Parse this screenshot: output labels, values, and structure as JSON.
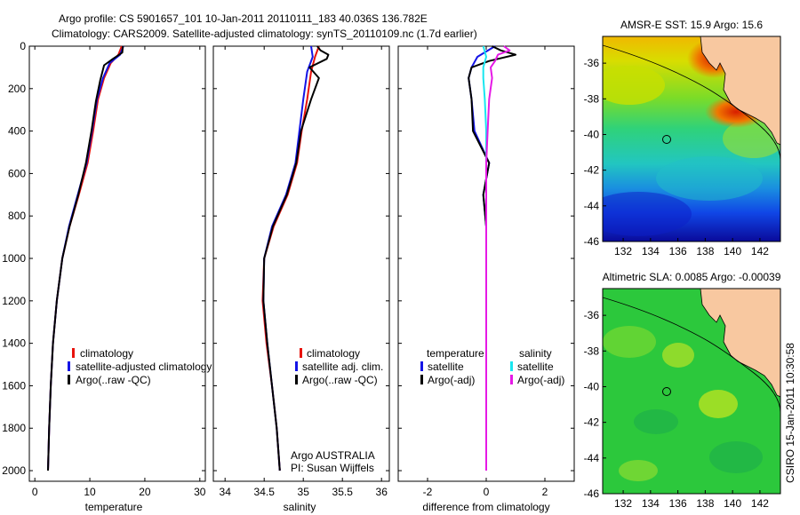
{
  "title": {
    "line1": "Argo profile: CS 5901657_101 10-Jan-2011 20110111_183 40.036S 136.782E",
    "line2": "Climatology: CARS2009. Satellite-adjusted climatology: synTS_20110109.nc (1.7d earlier)"
  },
  "side_label": "CSIRO 15-Jan-2011 10:30:58",
  "colors": {
    "red": "#e8120c",
    "blue": "#1414e6",
    "black": "#000000",
    "cyan": "#19e6f0",
    "magenta": "#e619e6"
  },
  "chart_data": [
    {
      "type": "line",
      "name": "temperature-profile",
      "xlabel": "temperature",
      "xlim": [
        -1,
        31
      ],
      "ylim": [
        2050,
        0
      ],
      "xticks": [
        0,
        10,
        20,
        30
      ],
      "yticks": [
        0,
        200,
        400,
        600,
        800,
        1000,
        1200,
        1400,
        1600,
        1800,
        2000
      ],
      "legend": [
        "climatology",
        "satellite-adjusted climatology",
        "Argo(..raw -QC)"
      ],
      "series": [
        {
          "name": "climatology",
          "color": "red",
          "points": [
            [
              15.8,
              0
            ],
            [
              15.2,
              40
            ],
            [
              13.8,
              80
            ],
            [
              12.6,
              150
            ],
            [
              11.5,
              250
            ],
            [
              10.6,
              400
            ],
            [
              9.6,
              550
            ],
            [
              8.0,
              700
            ],
            [
              6.3,
              850
            ],
            [
              5.0,
              1000
            ],
            [
              4.0,
              1200
            ],
            [
              3.3,
              1400
            ],
            [
              2.9,
              1600
            ],
            [
              2.6,
              1800
            ],
            [
              2.4,
              2000
            ]
          ]
        },
        {
          "name": "satellite-adjusted climatology",
          "color": "blue",
          "points": [
            [
              16.1,
              0
            ],
            [
              15.5,
              40
            ],
            [
              13.6,
              80
            ],
            [
              12.4,
              150
            ],
            [
              11.3,
              250
            ],
            [
              10.4,
              400
            ],
            [
              9.4,
              550
            ],
            [
              7.8,
              700
            ],
            [
              6.2,
              850
            ],
            [
              5.0,
              1000
            ],
            [
              4.0,
              1200
            ],
            [
              3.3,
              1400
            ],
            [
              2.9,
              1600
            ],
            [
              2.6,
              1800
            ],
            [
              2.4,
              2000
            ]
          ]
        },
        {
          "name": "Argo(..raw -QC)",
          "color": "black",
          "points": [
            [
              16.0,
              0
            ],
            [
              15.9,
              30
            ],
            [
              14.2,
              60
            ],
            [
              12.6,
              90
            ],
            [
              11.9,
              160
            ],
            [
              11.1,
              260
            ],
            [
              10.3,
              400
            ],
            [
              9.3,
              550
            ],
            [
              7.9,
              700
            ],
            [
              6.3,
              850
            ],
            [
              5.0,
              1000
            ],
            [
              4.0,
              1200
            ],
            [
              3.3,
              1400
            ],
            [
              2.9,
              1600
            ],
            [
              2.6,
              1800
            ],
            [
              2.4,
              2000
            ]
          ]
        }
      ]
    },
    {
      "type": "line",
      "name": "salinity-profile",
      "xlabel": "salinity",
      "xlim": [
        33.85,
        36.1
      ],
      "ylim": [
        2050,
        0
      ],
      "xticks": [
        34,
        34.5,
        35,
        35.5,
        36
      ],
      "legend": [
        "climatology",
        "satellite adj. clim.",
        "Argo(..raw -QC)"
      ],
      "annotations": [
        "Argo AUSTRALIA",
        "PI: Susan Wijffels"
      ],
      "series": [
        {
          "name": "climatology",
          "color": "red",
          "points": [
            [
              35.2,
              0
            ],
            [
              35.15,
              50
            ],
            [
              35.1,
              120
            ],
            [
              35.05,
              250
            ],
            [
              34.98,
              400
            ],
            [
              34.92,
              550
            ],
            [
              34.8,
              700
            ],
            [
              34.62,
              850
            ],
            [
              34.5,
              1000
            ],
            [
              34.48,
              1200
            ],
            [
              34.53,
              1400
            ],
            [
              34.6,
              1600
            ],
            [
              34.66,
              1800
            ],
            [
              34.7,
              2000
            ]
          ]
        },
        {
          "name": "satellite adj. clim.",
          "color": "blue",
          "points": [
            [
              35.1,
              0
            ],
            [
              35.12,
              50
            ],
            [
              35.05,
              120
            ],
            [
              35.0,
              250
            ],
            [
              34.95,
              400
            ],
            [
              34.9,
              550
            ],
            [
              34.78,
              700
            ],
            [
              34.6,
              850
            ],
            [
              34.5,
              1000
            ],
            [
              34.49,
              1200
            ],
            [
              34.54,
              1400
            ],
            [
              34.6,
              1600
            ],
            [
              34.66,
              1800
            ],
            [
              34.7,
              2000
            ]
          ]
        },
        {
          "name": "Argo(..raw -QC)",
          "color": "black",
          "points": [
            [
              35.18,
              0
            ],
            [
              35.22,
              20
            ],
            [
              35.32,
              40
            ],
            [
              35.3,
              60
            ],
            [
              35.08,
              100
            ],
            [
              35.2,
              150
            ],
            [
              35.1,
              250
            ],
            [
              34.97,
              400
            ],
            [
              34.91,
              550
            ],
            [
              34.79,
              700
            ],
            [
              34.61,
              850
            ],
            [
              34.5,
              1000
            ],
            [
              34.49,
              1200
            ],
            [
              34.54,
              1400
            ],
            [
              34.6,
              1600
            ],
            [
              34.66,
              1800
            ],
            [
              34.7,
              2000
            ]
          ]
        }
      ]
    },
    {
      "type": "line",
      "name": "difference-profile",
      "xlabel": "difference from climatology",
      "xlim": [
        -3,
        3
      ],
      "ylim": [
        2050,
        0
      ],
      "xticks": [
        -2,
        0,
        2
      ],
      "legend_headers": [
        "temperature",
        "salinity"
      ],
      "legend": [
        "satellite",
        "Argo(-adj)",
        "satellite",
        "Argo(-adj)"
      ],
      "series": [
        {
          "name": "temperature satellite",
          "color": "blue",
          "points": [
            [
              0.3,
              0
            ],
            [
              -0.3,
              50
            ],
            [
              -0.5,
              100
            ],
            [
              -0.6,
              150
            ],
            [
              -0.5,
              250
            ],
            [
              -0.4,
              400
            ],
            [
              0.1,
              550
            ],
            [
              -0.1,
              700
            ],
            [
              0,
              850
            ],
            [
              0,
              1000
            ],
            [
              0,
              2000
            ]
          ]
        },
        {
          "name": "temperature Argo(-adj)",
          "color": "black",
          "points": [
            [
              0.2,
              0
            ],
            [
              0.5,
              20
            ],
            [
              1.0,
              40
            ],
            [
              0.1,
              70
            ],
            [
              -0.5,
              100
            ],
            [
              -0.6,
              150
            ],
            [
              -0.5,
              250
            ],
            [
              -0.45,
              400
            ],
            [
              0.1,
              550
            ],
            [
              -0.1,
              700
            ],
            [
              0,
              850
            ],
            [
              0,
              1000
            ],
            [
              0,
              2000
            ]
          ]
        },
        {
          "name": "salinity satellite",
          "color": "cyan",
          "points": [
            [
              -0.1,
              0
            ],
            [
              0,
              50
            ],
            [
              -0.1,
              100
            ],
            [
              -0.1,
              150
            ],
            [
              -0.05,
              250
            ],
            [
              0,
              400
            ],
            [
              0,
              550
            ],
            [
              0,
              700
            ],
            [
              0,
              850
            ],
            [
              0,
              1000
            ],
            [
              0,
              2000
            ]
          ]
        },
        {
          "name": "salinity Argo(-adj)",
          "color": "magenta",
          "points": [
            [
              0.6,
              0
            ],
            [
              0.8,
              20
            ],
            [
              0.4,
              40
            ],
            [
              0.3,
              70
            ],
            [
              0.15,
              100
            ],
            [
              0.2,
              150
            ],
            [
              0.1,
              250
            ],
            [
              0.05,
              400
            ],
            [
              0,
              550
            ],
            [
              0,
              700
            ],
            [
              0,
              850
            ],
            [
              0,
              1000
            ],
            [
              0,
              2000
            ]
          ]
        }
      ]
    },
    {
      "type": "heatmap",
      "name": "sst-map",
      "title": "AMSR-E SST: 15.9 Argo: 15.6",
      "xlim": [
        130.5,
        143.5
      ],
      "ylim": [
        -46,
        -34.5
      ],
      "xticks": [
        132,
        134,
        136,
        138,
        140,
        142
      ],
      "yticks": [
        -46,
        -44,
        -42,
        -40,
        -38,
        -36
      ],
      "argo_position": [
        136.78,
        -40.04
      ]
    },
    {
      "type": "heatmap",
      "name": "sla-map",
      "title": "Altimetric SLA: 0.0085 Argo: -0.00039",
      "xlim": [
        130.5,
        143.5
      ],
      "ylim": [
        -46,
        -34.5
      ],
      "xticks": [
        132,
        134,
        136,
        138,
        140,
        142
      ],
      "yticks": [
        -46,
        -44,
        -42,
        -40,
        -38,
        -36
      ],
      "argo_position": [
        136.78,
        -40.04
      ]
    }
  ]
}
